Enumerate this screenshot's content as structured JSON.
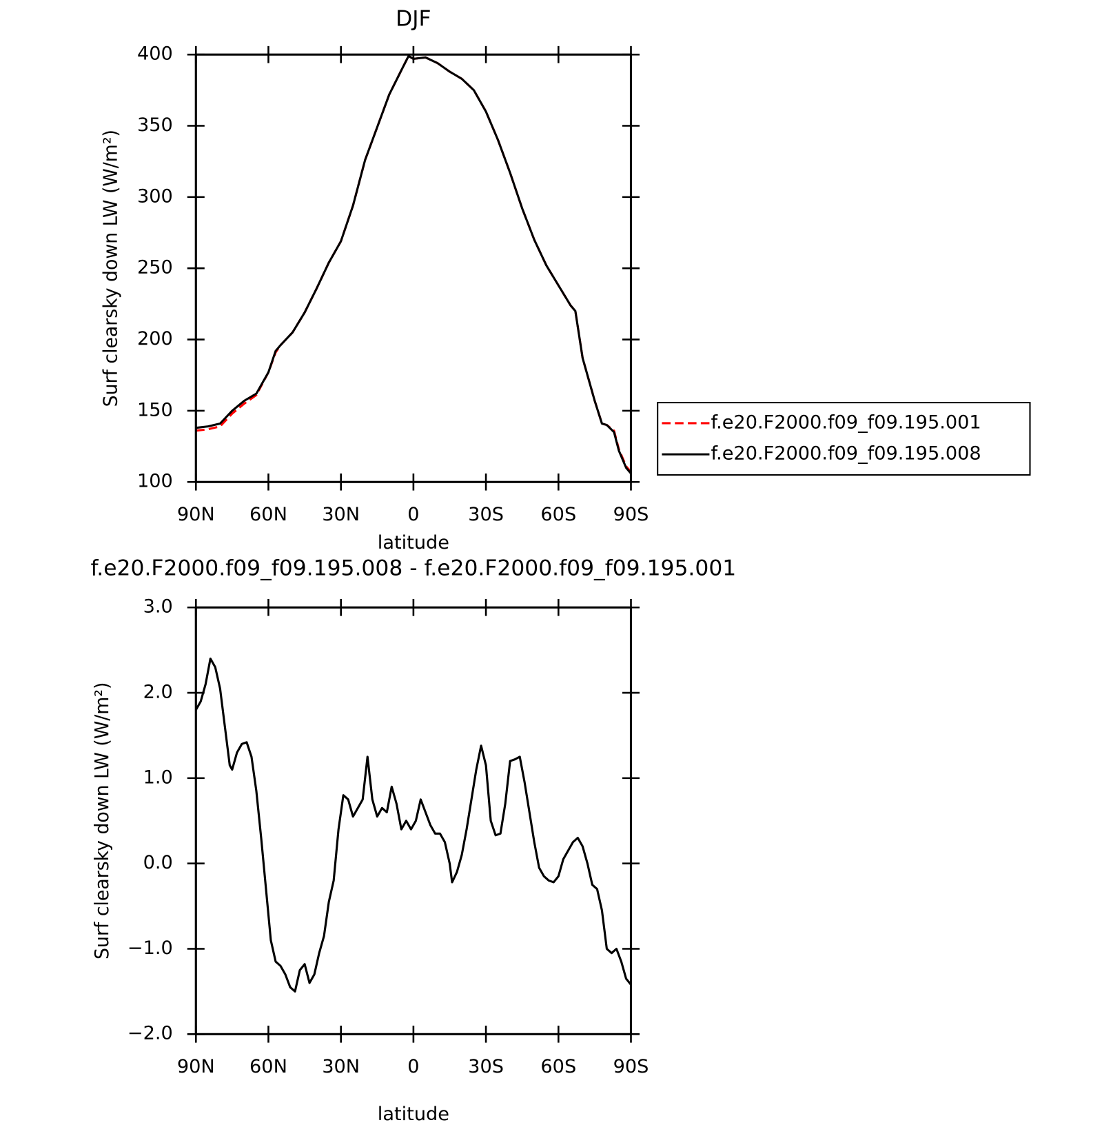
{
  "chart_data": [
    {
      "type": "line",
      "title": "DJF",
      "xlabel": "latitude",
      "ylabel": "Surf clearsky down LW (W/m²)",
      "x": [
        90,
        85,
        80,
        75,
        70,
        65,
        60,
        57,
        55,
        50,
        45,
        40,
        35,
        30,
        25,
        20,
        15,
        10,
        5,
        2,
        0,
        -5,
        -10,
        -15,
        -20,
        -25,
        -30,
        -35,
        -40,
        -45,
        -50,
        -55,
        -60,
        -65,
        -67,
        -70,
        -75,
        -78,
        -80,
        -83,
        -85,
        -88,
        -90
      ],
      "xlim": [
        90,
        -90
      ],
      "xticks": [
        {
          "value": 90,
          "label": "90N"
        },
        {
          "value": 60,
          "label": "60N"
        },
        {
          "value": 30,
          "label": "30N"
        },
        0,
        {
          "value": -30,
          "label": "30S"
        },
        {
          "value": -60,
          "label": "60S"
        },
        {
          "value": -90,
          "label": "90S"
        }
      ],
      "ylim": [
        100,
        400
      ],
      "yticks": [
        100,
        150,
        200,
        250,
        300,
        350,
        400
      ],
      "legend": "right",
      "series": [
        {
          "name": "f.e20.F2000.f09_f09.195.001",
          "color": "#ff0000",
          "dashed": true,
          "values": [
            136,
            137,
            139,
            148,
            155,
            161,
            177,
            191,
            196,
            205,
            219,
            236,
            254,
            269,
            294,
            326,
            349,
            372,
            389,
            399,
            397,
            398,
            394,
            388,
            383,
            375,
            360,
            340,
            317,
            292,
            270,
            252,
            238,
            224,
            220,
            187,
            157,
            141,
            140,
            136,
            123,
            111,
            107
          ]
        },
        {
          "name": "f.e20.F2000.f09_f09.195.008",
          "color": "#000000",
          "dashed": false,
          "values": [
            138,
            139,
            141,
            150,
            157,
            162,
            177,
            192,
            196,
            205,
            219,
            236,
            254,
            269,
            294,
            326,
            349,
            372,
            389,
            399,
            397,
            398,
            394,
            388,
            383,
            375,
            360,
            340,
            317,
            292,
            270,
            252,
            238,
            224,
            220,
            187,
            157,
            141,
            140,
            135,
            122,
            110,
            106
          ]
        }
      ]
    },
    {
      "type": "line",
      "title": "f.e20.F2000.f09_f09.195.008 - f.e20.F2000.f09_f09.195.001",
      "xlabel": "latitude",
      "ylabel": "Surf clearsky down LW (W/m²)",
      "x": [
        90,
        88,
        86,
        84,
        82,
        80,
        78,
        76,
        75,
        73,
        71,
        69,
        67,
        65,
        63,
        61,
        59,
        57,
        55,
        53,
        51,
        49,
        47,
        45,
        43,
        41,
        39,
        37,
        35,
        33,
        31,
        29,
        27,
        25,
        23,
        21,
        19,
        17,
        15,
        13,
        11,
        9,
        7,
        5,
        3,
        1,
        -1,
        -3,
        -5,
        -7,
        -9,
        -11,
        -13,
        -15,
        -16,
        -18,
        -20,
        -22,
        -24,
        -26,
        -28,
        -30,
        -32,
        -34,
        -36,
        -38,
        -40,
        -42,
        -44,
        -46,
        -48,
        -50,
        -52,
        -54,
        -56,
        -58,
        -60,
        -62,
        -64,
        -66,
        -68,
        -70,
        -72,
        -74,
        -76,
        -78,
        -80,
        -82,
        -84,
        -86,
        -88,
        -90
      ],
      "values": [
        1.8,
        1.9,
        2.1,
        2.4,
        2.3,
        2.05,
        1.6,
        1.15,
        1.1,
        1.3,
        1.4,
        1.42,
        1.25,
        0.85,
        0.3,
        -0.3,
        -0.9,
        -1.15,
        -1.2,
        -1.3,
        -1.45,
        -1.5,
        -1.25,
        -1.18,
        -1.4,
        -1.3,
        -1.05,
        -0.85,
        -0.45,
        -0.2,
        0.4,
        0.8,
        0.75,
        0.55,
        0.65,
        0.75,
        1.25,
        0.75,
        0.55,
        0.65,
        0.6,
        0.9,
        0.7,
        0.4,
        0.5,
        0.4,
        0.5,
        0.75,
        0.6,
        0.45,
        0.35,
        0.35,
        0.25,
        0,
        -0.22,
        -0.1,
        0.1,
        0.4,
        0.75,
        1.1,
        1.38,
        1.15,
        0.5,
        0.33,
        0.35,
        0.7,
        1.2,
        1.22,
        1.25,
        0.95,
        0.6,
        0.25,
        -0.05,
        -0.15,
        -0.2,
        -0.22,
        -0.15,
        0.05,
        0.15,
        0.25,
        0.3,
        0.2,
        0,
        -0.25,
        -0.3,
        -0.55,
        -1.0,
        -1.05,
        -1.0,
        -1.15,
        -1.35,
        -1.42
      ],
      "color": "#000000",
      "xlim": [
        90,
        -90
      ],
      "xticks": [
        {
          "value": 90,
          "label": "90N"
        },
        {
          "value": 60,
          "label": "60N"
        },
        {
          "value": 30,
          "label": "30N"
        },
        0,
        {
          "value": -30,
          "label": "30S"
        },
        {
          "value": -60,
          "label": "60S"
        },
        {
          "value": -90,
          "label": "90S"
        }
      ],
      "ylim": [
        -2,
        3
      ],
      "yticks": [
        {
          "value": -2,
          "label": "−2.0"
        },
        {
          "value": -1,
          "label": "−1.0"
        },
        {
          "value": 0,
          "label": "0.0"
        },
        {
          "value": 1,
          "label": "1.0"
        },
        {
          "value": 2,
          "label": "2.0"
        },
        {
          "value": 3,
          "label": "3.0"
        }
      ]
    }
  ]
}
